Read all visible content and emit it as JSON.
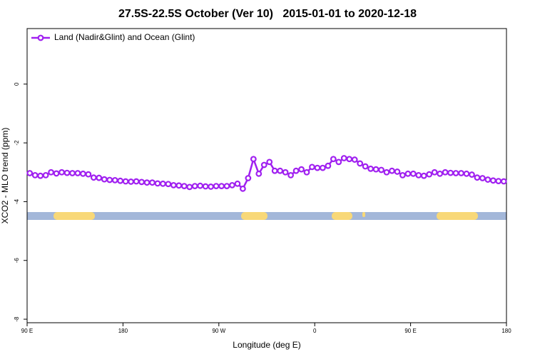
{
  "chart_data": {
    "type": "line",
    "title": "27.5S-22.5S October (Ver 10)   2015-01-01 to 2020-12-18",
    "x_label": "Longitude (deg E)",
    "y_label": "XCO2 - MLO trend (ppm)",
    "xlim": [
      90,
      540
    ],
    "ylim": [
      -8.12,
      1.89
    ],
    "xticks": [
      {
        "value": 90,
        "label": "90 E"
      },
      {
        "value": 180,
        "label": "180"
      },
      {
        "value": 270,
        "label": "90 W"
      },
      {
        "value": 360,
        "label": "0"
      },
      {
        "value": 450,
        "label": "90 E"
      },
      {
        "value": 540,
        "label": "180"
      }
    ],
    "yticks": [
      -8,
      -6,
      -4,
      -2,
      0
    ],
    "legend": "top-left",
    "x": [
      92.5,
      97.5,
      102.5,
      107.5,
      112.5,
      117.5,
      122.5,
      127.5,
      132.5,
      137.5,
      142.5,
      147.5,
      152.5,
      157.5,
      162.5,
      167.5,
      172.5,
      177.5,
      182.5,
      187.5,
      192.5,
      197.5,
      202.5,
      207.5,
      212.5,
      217.5,
      222.5,
      227.5,
      232.5,
      237.5,
      242.5,
      247.5,
      252.5,
      257.5,
      262.5,
      267.5,
      272.5,
      277.5,
      282.5,
      287.5,
      292.5,
      297.5,
      302.5,
      307.5,
      312.5,
      317.5,
      322.5,
      327.5,
      332.5,
      337.5,
      342.5,
      347.5,
      352.5,
      357.5,
      362.5,
      367.5,
      372.5,
      377.5,
      382.5,
      387.5,
      392.5,
      397.5,
      402.5,
      407.5,
      412.5,
      417.5,
      422.5,
      427.5,
      432.5,
      437.5,
      442.5,
      447.5,
      452.5,
      457.5,
      462.5,
      467.5,
      472.5,
      477.5,
      482.5,
      487.5,
      492.5,
      497.5,
      502.5,
      507.5,
      512.5,
      517.5,
      522.5,
      527.5,
      532.5,
      537.5
    ],
    "series": [
      {
        "name": "Land (Nadir&Glint) and Ocean (Glint)",
        "color": "#a020f0",
        "values": [
          -3.03,
          -3.1,
          -3.12,
          -3.1,
          -3.0,
          -3.04,
          -3.0,
          -3.02,
          -3.03,
          -3.03,
          -3.05,
          -3.07,
          -3.18,
          -3.19,
          -3.24,
          -3.26,
          -3.27,
          -3.29,
          -3.31,
          -3.32,
          -3.31,
          -3.33,
          -3.35,
          -3.35,
          -3.38,
          -3.39,
          -3.4,
          -3.44,
          -3.45,
          -3.47,
          -3.5,
          -3.47,
          -3.46,
          -3.48,
          -3.49,
          -3.47,
          -3.47,
          -3.47,
          -3.44,
          -3.39,
          -3.56,
          -3.2,
          -2.55,
          -3.05,
          -2.75,
          -2.65,
          -2.95,
          -2.95,
          -3.0,
          -3.1,
          -2.95,
          -2.9,
          -3.0,
          -2.82,
          -2.85,
          -2.85,
          -2.78,
          -2.55,
          -2.65,
          -2.52,
          -2.55,
          -2.57,
          -2.7,
          -2.8,
          -2.88,
          -2.9,
          -2.92,
          -3.0,
          -2.95,
          -2.98,
          -3.1,
          -3.05,
          -3.05,
          -3.1,
          -3.12,
          -3.07,
          -3.0,
          -3.05,
          -3.0,
          -3.02,
          -3.03,
          -3.03,
          -3.05,
          -3.08,
          -3.18,
          -3.2,
          -3.25,
          -3.28,
          -3.3,
          -3.31
        ]
      }
    ]
  }
}
